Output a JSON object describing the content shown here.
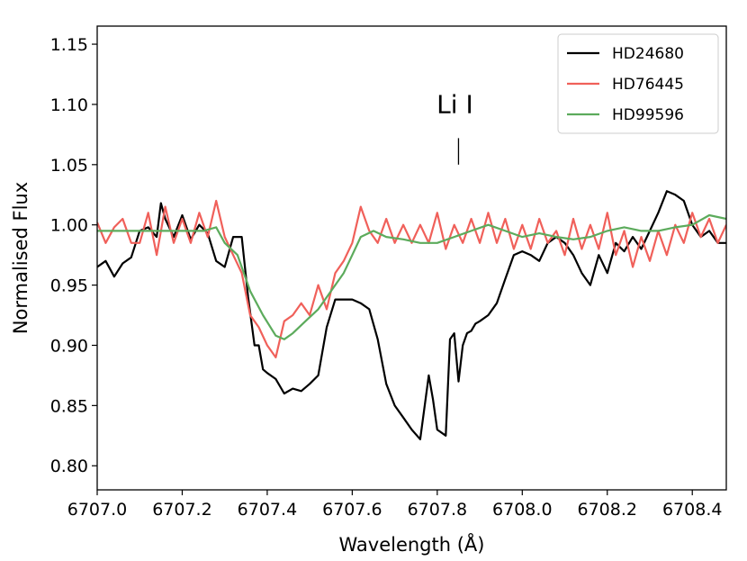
{
  "chart_data": {
    "type": "line",
    "xlabel": "Wavelength (Å)",
    "ylabel": "Normalised Flux",
    "xlim": [
      6707.0,
      6708.48
    ],
    "ylim": [
      0.78,
      1.165
    ],
    "xticks": [
      "6707.0",
      "6707.2",
      "6707.4",
      "6707.6",
      "6707.8",
      "6708.0",
      "6708.2",
      "6708.4"
    ],
    "yticks": [
      "0.80",
      "0.85",
      "0.90",
      "0.95",
      "1.00",
      "1.05",
      "1.10",
      "1.15"
    ],
    "legend_position": "top-right",
    "annotation": {
      "text": "Li I",
      "x": 6707.85,
      "marker_y": [
        1.05,
        1.072
      ]
    },
    "series": [
      {
        "name": "HD24680",
        "color": "#000000",
        "x": [
          6707.0,
          6707.02,
          6707.04,
          6707.06,
          6707.08,
          6707.1,
          6707.12,
          6707.14,
          6707.15,
          6707.16,
          6707.18,
          6707.2,
          6707.22,
          6707.24,
          6707.26,
          6707.28,
          6707.3,
          6707.32,
          6707.34,
          6707.355,
          6707.37,
          6707.38,
          6707.39,
          6707.4,
          6707.42,
          6707.44,
          6707.46,
          6707.48,
          6707.5,
          6707.52,
          6707.54,
          6707.56,
          6707.58,
          6707.6,
          6707.62,
          6707.64,
          6707.66,
          6707.68,
          6707.7,
          6707.72,
          6707.74,
          6707.76,
          6707.78,
          6707.79,
          6707.8,
          6707.82,
          6707.83,
          6707.84,
          6707.85,
          6707.86,
          6707.87,
          6707.88,
          6707.89,
          6707.9,
          6707.92,
          6707.94,
          6707.96,
          6707.98,
          6708.0,
          6708.02,
          6708.04,
          6708.06,
          6708.08,
          6708.1,
          6708.12,
          6708.14,
          6708.16,
          6708.18,
          6708.2,
          6708.22,
          6708.24,
          6708.26,
          6708.28,
          6708.3,
          6708.32,
          6708.34,
          6708.36,
          6708.38,
          6708.4,
          6708.42,
          6708.44,
          6708.46,
          6708.48
        ],
        "values": [
          0.965,
          0.97,
          0.957,
          0.968,
          0.973,
          0.995,
          0.998,
          0.99,
          1.018,
          1.005,
          0.99,
          1.008,
          0.988,
          1.0,
          0.993,
          0.97,
          0.965,
          0.99,
          0.99,
          0.94,
          0.9,
          0.9,
          0.88,
          0.877,
          0.872,
          0.86,
          0.864,
          0.862,
          0.868,
          0.875,
          0.915,
          0.938,
          0.938,
          0.938,
          0.935,
          0.93,
          0.905,
          0.868,
          0.85,
          0.84,
          0.83,
          0.822,
          0.875,
          0.855,
          0.83,
          0.825,
          0.905,
          0.91,
          0.87,
          0.9,
          0.91,
          0.912,
          0.918,
          0.92,
          0.925,
          0.935,
          0.955,
          0.975,
          0.978,
          0.975,
          0.97,
          0.985,
          0.99,
          0.985,
          0.975,
          0.96,
          0.95,
          0.975,
          0.96,
          0.985,
          0.978,
          0.99,
          0.98,
          0.995,
          1.01,
          1.028,
          1.025,
          1.02,
          1.0,
          0.99,
          0.995,
          0.985,
          0.985
        ]
      },
      {
        "name": "HD76445",
        "color": "#f0605a",
        "x": [
          6707.0,
          6707.02,
          6707.04,
          6707.06,
          6707.08,
          6707.1,
          6707.12,
          6707.14,
          6707.16,
          6707.18,
          6707.2,
          6707.22,
          6707.24,
          6707.26,
          6707.28,
          6707.3,
          6707.32,
          6707.34,
          6707.36,
          6707.38,
          6707.4,
          6707.42,
          6707.44,
          6707.46,
          6707.48,
          6707.5,
          6707.52,
          6707.54,
          6707.56,
          6707.58,
          6707.6,
          6707.62,
          6707.64,
          6707.66,
          6707.68,
          6707.7,
          6707.72,
          6707.74,
          6707.76,
          6707.78,
          6707.8,
          6707.82,
          6707.84,
          6707.86,
          6707.88,
          6707.9,
          6707.92,
          6707.94,
          6707.96,
          6707.98,
          6708.0,
          6708.02,
          6708.04,
          6708.06,
          6708.08,
          6708.1,
          6708.12,
          6708.14,
          6708.16,
          6708.18,
          6708.2,
          6708.22,
          6708.24,
          6708.26,
          6708.28,
          6708.3,
          6708.32,
          6708.34,
          6708.36,
          6708.38,
          6708.4,
          6708.42,
          6708.44,
          6708.46,
          6708.48
        ],
        "values": [
          1.002,
          0.985,
          0.998,
          1.005,
          0.985,
          0.985,
          1.01,
          0.975,
          1.015,
          0.985,
          1.005,
          0.985,
          1.01,
          0.99,
          1.02,
          0.99,
          0.975,
          0.96,
          0.925,
          0.915,
          0.9,
          0.89,
          0.92,
          0.925,
          0.935,
          0.925,
          0.95,
          0.93,
          0.96,
          0.97,
          0.985,
          1.015,
          0.995,
          0.985,
          1.005,
          0.985,
          1.0,
          0.985,
          1.0,
          0.985,
          1.01,
          0.98,
          1.0,
          0.985,
          1.005,
          0.985,
          1.01,
          0.985,
          1.005,
          0.98,
          1.0,
          0.98,
          1.005,
          0.985,
          0.995,
          0.975,
          1.005,
          0.98,
          1.0,
          0.98,
          1.01,
          0.975,
          0.995,
          0.965,
          0.99,
          0.97,
          0.995,
          0.975,
          1.0,
          0.985,
          1.01,
          0.99,
          1.005,
          0.985,
          1.0
        ]
      },
      {
        "name": "HD99596",
        "color": "#5cab5c",
        "x": [
          6707.0,
          6707.05,
          6707.1,
          6707.15,
          6707.2,
          6707.25,
          6707.28,
          6707.3,
          6707.33,
          6707.36,
          6707.39,
          6707.42,
          6707.44,
          6707.46,
          6707.49,
          6707.52,
          6707.55,
          6707.58,
          6707.6,
          6707.62,
          6707.65,
          6707.68,
          6707.72,
          6707.76,
          6707.8,
          6707.84,
          6707.88,
          6707.92,
          6707.96,
          6708.0,
          6708.04,
          6708.08,
          6708.12,
          6708.16,
          6708.2,
          6708.24,
          6708.28,
          6708.32,
          6708.36,
          6708.4,
          6708.44,
          6708.48
        ],
        "values": [
          0.995,
          0.995,
          0.995,
          0.995,
          0.995,
          0.995,
          0.998,
          0.985,
          0.975,
          0.945,
          0.925,
          0.908,
          0.905,
          0.91,
          0.92,
          0.93,
          0.945,
          0.96,
          0.975,
          0.99,
          0.995,
          0.99,
          0.988,
          0.985,
          0.985,
          0.99,
          0.995,
          1.0,
          0.995,
          0.99,
          0.993,
          0.99,
          0.988,
          0.99,
          0.995,
          0.998,
          0.995,
          0.995,
          0.998,
          1.0,
          1.008,
          1.005
        ]
      }
    ]
  }
}
